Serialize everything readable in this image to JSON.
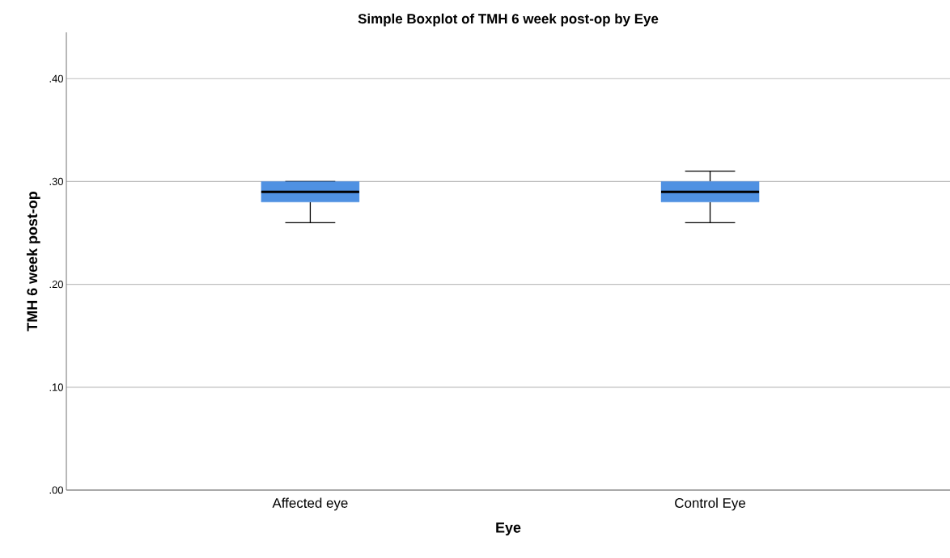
{
  "chart_data": {
    "type": "box",
    "title": "Simple Boxplot of TMH  6 week post-op by Eye",
    "xlabel": "Eye",
    "ylabel": "TMH  6 week post-op",
    "categories": [
      "Affected eye",
      "Control Eye"
    ],
    "color": "#4f91e2",
    "boxes": [
      {
        "low": 0.26,
        "q1": 0.28,
        "median": 0.29,
        "q3": 0.3,
        "high": 0.3
      },
      {
        "low": 0.26,
        "q1": 0.28,
        "median": 0.29,
        "q3": 0.3,
        "high": 0.31
      }
    ],
    "ylim": [
      0,
      0.445
    ],
    "yticks": [
      {
        "value": 0,
        "label": ".00"
      },
      {
        "value": 0.1,
        "label": ".10"
      },
      {
        "value": 0.2,
        "label": ".20"
      },
      {
        "value": 0.3,
        "label": ".30"
      },
      {
        "value": 0.4,
        "label": ".40"
      }
    ],
    "grid": "y"
  }
}
